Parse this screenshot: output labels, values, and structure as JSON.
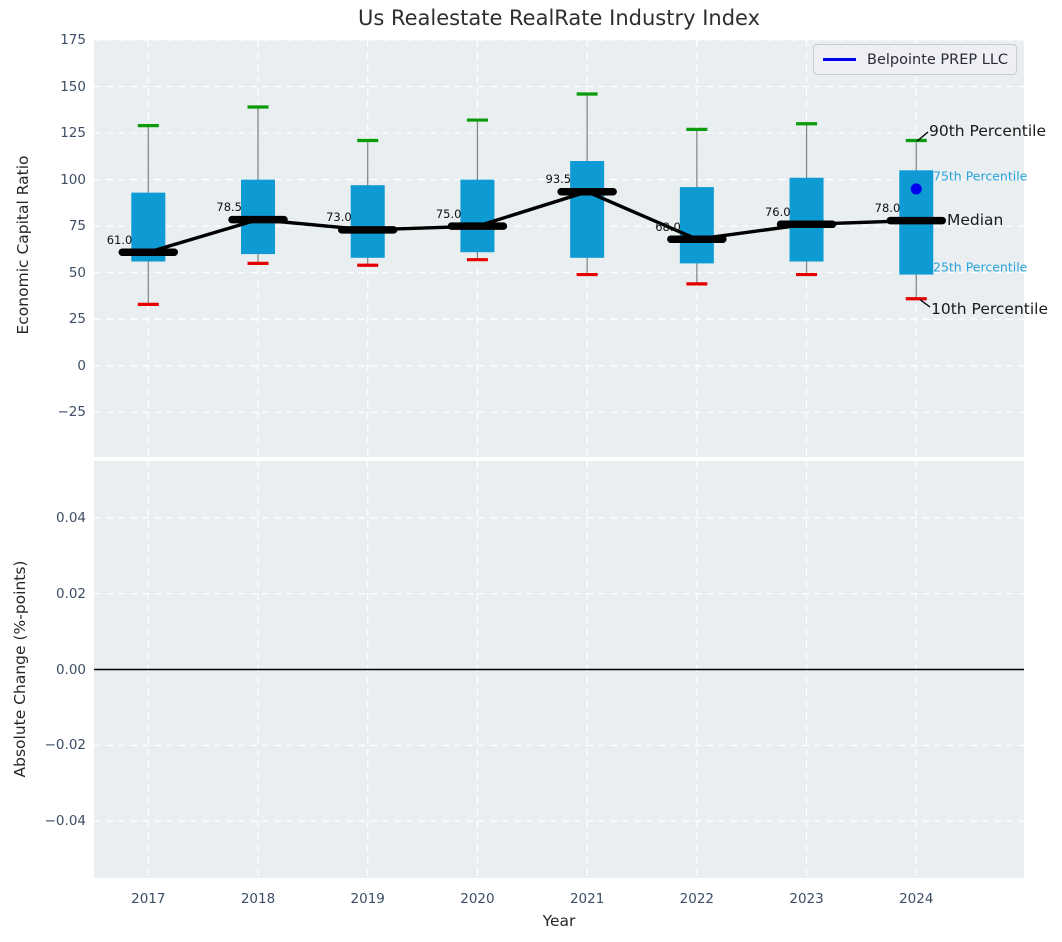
{
  "title": "Us Realestate RealRate Industry Index",
  "legend": {
    "label": "Belpointe PREP LLC"
  },
  "top_axis": {
    "ylabel": "Economic Capital Ratio",
    "ytick_labels": [
      "175",
      "150",
      "125",
      "100",
      "75",
      "50",
      "25",
      "0",
      "−25"
    ],
    "ytick_values": [
      175,
      150,
      125,
      100,
      75,
      50,
      25,
      0,
      -25
    ]
  },
  "bottom_axis": {
    "ylabel": "Absolute Change (%-points)",
    "ytick_labels": [
      "0.04",
      "0.02",
      "0.00",
      "−0.02",
      "−0.04"
    ],
    "ytick_values": [
      0.04,
      0.02,
      0,
      -0.02,
      -0.04
    ]
  },
  "x_axis": {
    "label": "Year",
    "tick_labels": [
      "2017",
      "2018",
      "2019",
      "2020",
      "2021",
      "2022",
      "2023",
      "2024"
    ]
  },
  "annotations": {
    "p90": "90th Percentile",
    "p75": "75th Percentile",
    "median": "Median",
    "p25": "25th Percentile",
    "p10": "10th Percentile"
  },
  "colors": {
    "box_fill": "#0e9ad2",
    "p90_cap": "#0a9b0a",
    "p10_cap": "#e60000",
    "whisker": "#808080",
    "median_bar": "#000000",
    "trend_line": "#000000",
    "belpointe_blue": "#0000ee",
    "plot_bg": "#e9eef1",
    "grid": "#ffffff",
    "zero_line": "#000000",
    "cyan_label": "#2ba3dc"
  },
  "chart_data": {
    "type": "boxplot",
    "title": "Us Realestate RealRate Industry Index",
    "xlabel": "Year",
    "ylabel_top": "Economic Capital Ratio",
    "ylabel_bottom": "Absolute Change (%-points)",
    "x": [
      2017,
      2018,
      2019,
      2020,
      2021,
      2022,
      2023,
      2024
    ],
    "series": [
      {
        "name": "90th Percentile",
        "values": [
          129,
          139,
          121,
          132,
          146,
          127,
          130,
          121
        ]
      },
      {
        "name": "75th Percentile",
        "values": [
          93,
          100,
          97,
          100,
          110,
          96,
          101,
          105
        ]
      },
      {
        "name": "Median",
        "values": [
          61.0,
          78.5,
          73.0,
          75.0,
          93.5,
          68.0,
          76.0,
          78.0
        ]
      },
      {
        "name": "25th Percentile",
        "values": [
          56,
          60,
          58,
          61,
          58,
          55,
          56,
          49
        ]
      },
      {
        "name": "10th Percentile",
        "values": [
          33,
          55,
          54,
          57,
          49,
          44,
          49,
          36
        ]
      }
    ],
    "median_labels": [
      "61.0",
      "78.5",
      "73.0",
      "75.0",
      "93.5",
      "68.0",
      "76.0",
      "78.0"
    ],
    "points": [
      {
        "name": "Belpointe PREP LLC",
        "x": 2024,
        "y": 95
      }
    ],
    "top_ylim": [
      -49,
      175
    ],
    "bottom_ylim": [
      -0.055,
      0.055
    ],
    "bottom_zero_line": 0.0,
    "grid": "white dashed",
    "legend_position": "upper right"
  }
}
